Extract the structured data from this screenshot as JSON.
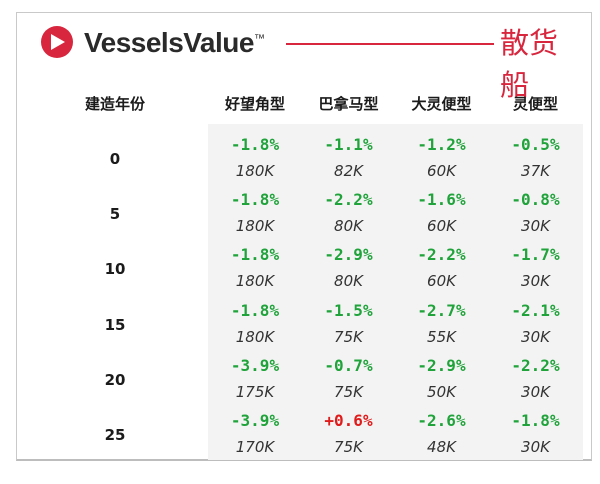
{
  "header": {
    "brand": "VesselsValue",
    "trademark": "™",
    "title": "散货船"
  },
  "colors": {
    "accent": "#d7263d",
    "positive": "#1fa33a",
    "negative": "#e01b1b"
  },
  "table": {
    "columns": [
      "建造年份",
      "好望角型",
      "巴拿马型",
      "大灵便型",
      "灵便型"
    ],
    "rows": [
      {
        "age": "0",
        "cells": [
          {
            "pct": "-1.8%",
            "val": "180K"
          },
          {
            "pct": "-1.1%",
            "val": "82K"
          },
          {
            "pct": "-1.2%",
            "val": "60K"
          },
          {
            "pct": "-0.5%",
            "val": "37K"
          }
        ]
      },
      {
        "age": "5",
        "cells": [
          {
            "pct": "-1.8%",
            "val": "180K"
          },
          {
            "pct": "-2.2%",
            "val": "80K"
          },
          {
            "pct": "-1.6%",
            "val": "60K"
          },
          {
            "pct": "-0.8%",
            "val": "30K"
          }
        ]
      },
      {
        "age": "10",
        "cells": [
          {
            "pct": "-1.8%",
            "val": "180K"
          },
          {
            "pct": "-2.9%",
            "val": "80K"
          },
          {
            "pct": "-2.2%",
            "val": "60K"
          },
          {
            "pct": "-1.7%",
            "val": "30K"
          }
        ]
      },
      {
        "age": "15",
        "cells": [
          {
            "pct": "-1.8%",
            "val": "180K"
          },
          {
            "pct": "-1.5%",
            "val": "75K"
          },
          {
            "pct": "-2.7%",
            "val": "55K"
          },
          {
            "pct": "-2.1%",
            "val": "30K"
          }
        ]
      },
      {
        "age": "20",
        "cells": [
          {
            "pct": "-3.9%",
            "val": "175K"
          },
          {
            "pct": "-0.7%",
            "val": "75K"
          },
          {
            "pct": "-2.9%",
            "val": "50K"
          },
          {
            "pct": "-2.2%",
            "val": "30K"
          }
        ]
      },
      {
        "age": "25",
        "cells": [
          {
            "pct": "-3.9%",
            "val": "170K"
          },
          {
            "pct": "+0.6%",
            "val": "75K"
          },
          {
            "pct": "-2.6%",
            "val": "48K"
          },
          {
            "pct": "-1.8%",
            "val": "30K"
          }
        ]
      }
    ]
  }
}
